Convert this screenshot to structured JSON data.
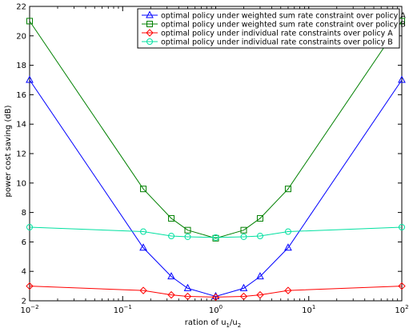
{
  "chart_data": {
    "type": "line",
    "title": "",
    "xlabel": {
      "prefix": "ration of u",
      "sub1": "1",
      "mid": "/u",
      "sub2": "2"
    },
    "ylabel": "power cost saving (dB)",
    "xscale": "log",
    "xlim": [
      0.01,
      100
    ],
    "ylim": [
      2,
      22
    ],
    "yticks": [
      2,
      4,
      6,
      8,
      10,
      12,
      14,
      16,
      18,
      20,
      22
    ],
    "ytick_labels": [
      "2",
      "4",
      "6",
      "8",
      "10",
      "12",
      "14",
      "16",
      "18",
      "20",
      "22"
    ],
    "xticks": [
      {
        "value": 0.01,
        "base": "10",
        "exp": "−2"
      },
      {
        "value": 0.1,
        "base": "10",
        "exp": "−1"
      },
      {
        "value": 1,
        "base": "10",
        "exp": "0"
      },
      {
        "value": 10,
        "base": "10",
        "exp": "1"
      },
      {
        "value": 100,
        "base": "10",
        "exp": "2"
      }
    ],
    "x": [
      0.01,
      0.1667,
      0.3333,
      0.5,
      1,
      2,
      3,
      6,
      100
    ],
    "grid": false,
    "legend_position": "top-right",
    "series": [
      {
        "name": "optimal policy under weighted sum rate constraint over policy A",
        "color": "#0000ff",
        "marker": "triangle",
        "values": [
          17.0,
          5.6,
          3.65,
          2.85,
          2.3,
          2.85,
          3.65,
          5.6,
          17.0
        ]
      },
      {
        "name": "optimal policy under weighted sum rate constraint over policy B",
        "color": "#008000",
        "marker": "square",
        "values": [
          21.0,
          9.6,
          7.6,
          6.8,
          6.25,
          6.8,
          7.6,
          9.6,
          21.0
        ]
      },
      {
        "name": "optimal policy under individual rate constraints over policy A",
        "color": "#ff0000",
        "marker": "diamond",
        "values": [
          3.0,
          2.7,
          2.4,
          2.3,
          2.25,
          2.3,
          2.4,
          2.7,
          3.0
        ]
      },
      {
        "name": "optimal policy under individual rate constraints over policy B",
        "color": "#00e0a0",
        "marker": "circle",
        "values": [
          7.0,
          6.7,
          6.4,
          6.35,
          6.3,
          6.35,
          6.4,
          6.7,
          7.0
        ]
      }
    ]
  }
}
